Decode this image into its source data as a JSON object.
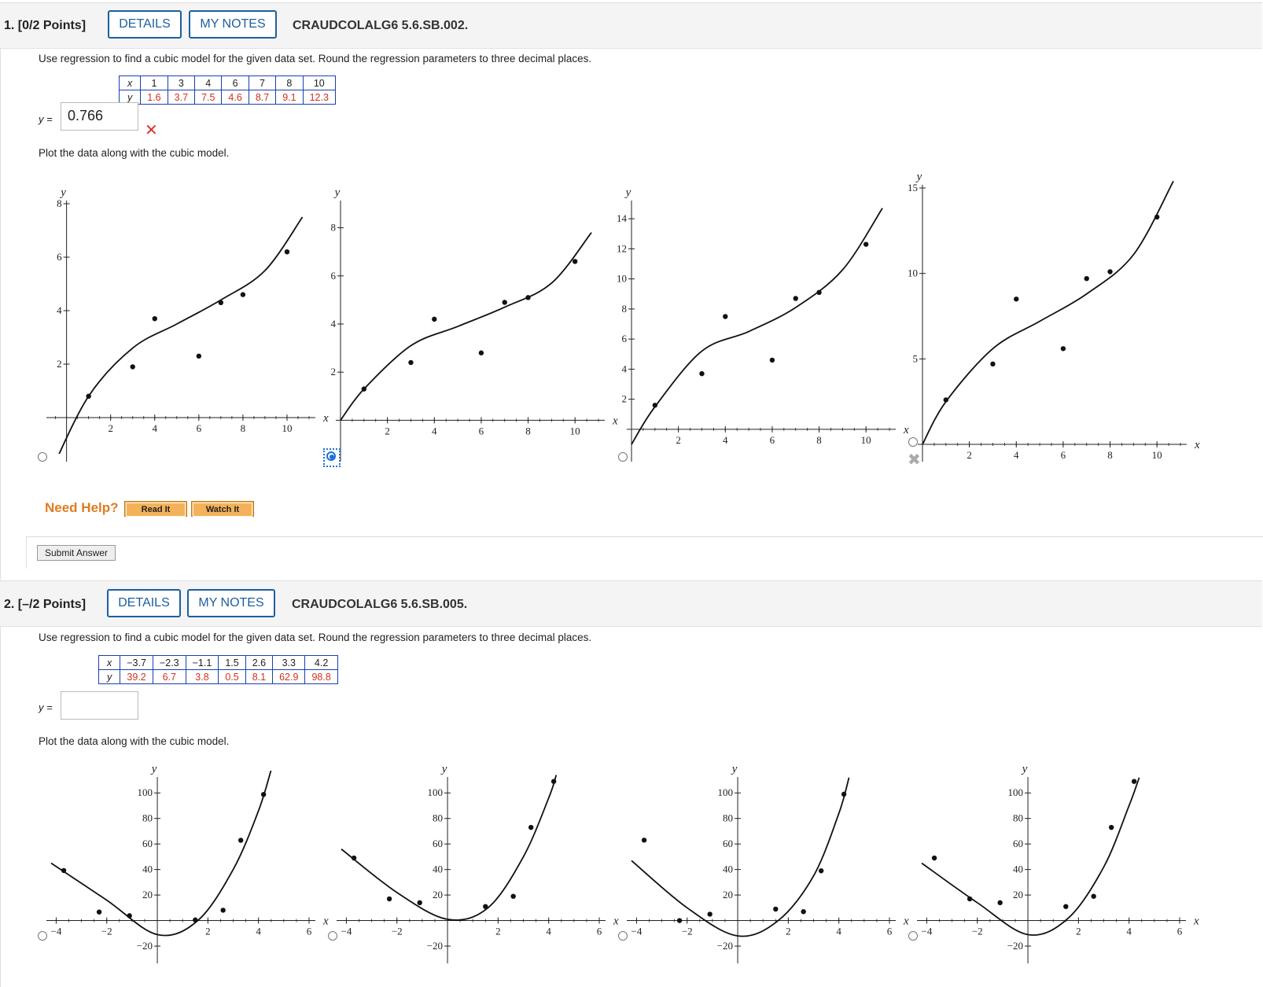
{
  "q1": {
    "number": "1.",
    "points": "[0/2 Points]",
    "details_label": "DETAILS",
    "notes_label": "MY NOTES",
    "code": "CRAUDCOLALG6 5.6.SB.002.",
    "prompt": "Use regression to find a cubic model for the given data set. Round the regression parameters to three decimal places.",
    "table": {
      "x_label": "x",
      "y_label": "y",
      "x": [
        "1",
        "3",
        "4",
        "6",
        "7",
        "8",
        "10"
      ],
      "y": [
        "1.6",
        "3.7",
        "7.5",
        "4.6",
        "8.7",
        "9.1",
        "12.3"
      ]
    },
    "answer_label": "y =",
    "answer_value": "0.766",
    "answer_status": "incorrect",
    "plot_prompt": "Plot the data along with the cubic model.",
    "selected_option": 2,
    "marked_wrong_option": 3,
    "help_label": "Need Help?",
    "read_it": "Read It",
    "watch_it": "Watch It",
    "submit_label": "Submit Answer"
  },
  "q2": {
    "number": "2.",
    "points": "[–/2 Points]",
    "details_label": "DETAILS",
    "notes_label": "MY NOTES",
    "code": "CRAUDCOLALG6 5.6.SB.005.",
    "prompt": "Use regression to find a cubic model for the given data set. Round the regression parameters to three decimal places.",
    "table": {
      "x_label": "x",
      "y_label": "y",
      "x": [
        "−3.7",
        "−2.3",
        "−1.1",
        "1.5",
        "2.6",
        "3.3",
        "4.2"
      ],
      "y": [
        "39.2",
        "6.7",
        "3.8",
        "0.5",
        "8.1",
        "62.9",
        "98.8"
      ]
    },
    "answer_label": "y =",
    "answer_value": "",
    "plot_prompt": "Plot the data along with the cubic model.",
    "selected_option": null
  },
  "chart_data": [
    {
      "type": "scatter",
      "xlabel": "x",
      "ylabel": "y",
      "xlim": [
        -0.7,
        11
      ],
      "ylim": [
        -1,
        8
      ],
      "xticks": [
        2,
        4,
        6,
        8,
        10
      ],
      "yticks": [
        2,
        4,
        6,
        8
      ],
      "points": [
        [
          1,
          0.8
        ],
        [
          3,
          1.9
        ],
        [
          4,
          3.7
        ],
        [
          6,
          2.3
        ],
        [
          7,
          4.3
        ],
        [
          8,
          4.6
        ],
        [
          10,
          6.2
        ]
      ],
      "curve": [
        [
          -0.7,
          -2
        ],
        [
          1,
          0.8
        ],
        [
          3,
          2.6
        ],
        [
          5,
          3.5
        ],
        [
          7,
          4.4
        ],
        [
          9,
          5.5
        ],
        [
          10.7,
          7.5
        ]
      ]
    },
    {
      "type": "scatter",
      "xlabel": "x",
      "ylabel": "y",
      "xlim": [
        0,
        11
      ],
      "ylim": [
        -1,
        9
      ],
      "xticks": [
        2,
        4,
        6,
        8,
        10
      ],
      "yticks": [
        2,
        4,
        6,
        8
      ],
      "points": [
        [
          1,
          1.3
        ],
        [
          3,
          2.4
        ],
        [
          4,
          4.2
        ],
        [
          6,
          2.8
        ],
        [
          7,
          4.9
        ],
        [
          8,
          5.1
        ],
        [
          10,
          6.6
        ]
      ],
      "curve": [
        [
          0,
          0
        ],
        [
          1,
          1.3
        ],
        [
          3,
          3.1
        ],
        [
          5,
          3.9
        ],
        [
          7,
          4.7
        ],
        [
          9,
          5.7
        ],
        [
          10.7,
          7.8
        ]
      ]
    },
    {
      "type": "scatter",
      "xlabel": "x",
      "ylabel": "y",
      "xlim": [
        0,
        11
      ],
      "ylim": [
        -1,
        15
      ],
      "xticks": [
        2,
        4,
        6,
        8,
        10
      ],
      "yticks": [
        2,
        4,
        6,
        8,
        10,
        12,
        14
      ],
      "points": [
        [
          1,
          1.6
        ],
        [
          3,
          3.7
        ],
        [
          4,
          7.5
        ],
        [
          6,
          4.6
        ],
        [
          7,
          8.7
        ],
        [
          8,
          9.1
        ],
        [
          10,
          12.3
        ]
      ],
      "curve": [
        [
          0,
          -1
        ],
        [
          1,
          1.5
        ],
        [
          3,
          5.2
        ],
        [
          5,
          6.5
        ],
        [
          7,
          8.1
        ],
        [
          9,
          10.6
        ],
        [
          10.7,
          14.7
        ]
      ]
    },
    {
      "type": "scatter",
      "xlabel": "x",
      "ylabel": "y",
      "xlim": [
        0,
        11
      ],
      "ylim": [
        0,
        15
      ],
      "xticks": [
        2,
        4,
        6,
        8,
        10
      ],
      "yticks": [
        5,
        10,
        15
      ],
      "points": [
        [
          1,
          2.6
        ],
        [
          3,
          4.7
        ],
        [
          4,
          8.5
        ],
        [
          6,
          5.6
        ],
        [
          7,
          9.7
        ],
        [
          8,
          10.1
        ],
        [
          10,
          13.3
        ]
      ],
      "curve": [
        [
          0,
          0
        ],
        [
          1,
          2.5
        ],
        [
          3,
          5.6
        ],
        [
          5,
          7.2
        ],
        [
          7,
          8.8
        ],
        [
          9,
          11.1
        ],
        [
          10.7,
          15.4
        ]
      ]
    },
    {
      "type": "scatter",
      "xlabel": "x",
      "ylabel": "y",
      "xlim": [
        -4.2,
        6
      ],
      "ylim": [
        -20,
        110
      ],
      "xticks": [
        -4,
        -2,
        2,
        4,
        6
      ],
      "yticks": [
        -20,
        20,
        40,
        60,
        80,
        100
      ],
      "points": [
        [
          -3.7,
          39.2
        ],
        [
          -2.3,
          6.7
        ],
        [
          -1.1,
          3.8
        ],
        [
          1.5,
          0.5
        ],
        [
          2.6,
          8.1
        ],
        [
          3.3,
          62.9
        ],
        [
          4.2,
          98.8
        ]
      ],
      "curve": [
        [
          -4.2,
          45
        ],
        [
          -2,
          16
        ],
        [
          0,
          -11
        ],
        [
          1.6,
          0
        ],
        [
          3,
          40
        ],
        [
          4,
          86
        ],
        [
          4.5,
          118
        ]
      ]
    },
    {
      "type": "scatter",
      "xlabel": "x",
      "ylabel": "y",
      "xlim": [
        -4.2,
        6
      ],
      "ylim": [
        -20,
        110
      ],
      "xticks": [
        -4,
        -2,
        2,
        4,
        6
      ],
      "yticks": [
        -20,
        20,
        40,
        60,
        80,
        100
      ],
      "points": [
        [
          -3.7,
          49
        ],
        [
          -2.3,
          17
        ],
        [
          -1.1,
          14
        ],
        [
          1.5,
          11
        ],
        [
          2.6,
          19
        ],
        [
          3.3,
          73
        ],
        [
          4.2,
          109
        ]
      ],
      "curve": [
        [
          -4.2,
          56
        ],
        [
          -2,
          22
        ],
        [
          0,
          1
        ],
        [
          1.6,
          10
        ],
        [
          3,
          50
        ],
        [
          4,
          96
        ],
        [
          4.3,
          114
        ]
      ]
    },
    {
      "type": "scatter",
      "xlabel": "x",
      "ylabel": "y",
      "xlim": [
        -4.2,
        6
      ],
      "ylim": [
        -20,
        110
      ],
      "xticks": [
        -4,
        -2,
        2,
        4,
        6
      ],
      "yticks": [
        -20,
        20,
        40,
        60,
        80,
        100
      ],
      "points": [
        [
          -3.7,
          63
        ],
        [
          -2.3,
          0
        ],
        [
          -1.1,
          5
        ],
        [
          1.5,
          9
        ],
        [
          2.6,
          7
        ],
        [
          3.3,
          39
        ],
        [
          4.2,
          99
        ]
      ],
      "curve": [
        [
          -4.2,
          47
        ],
        [
          -2,
          10
        ],
        [
          0,
          -12
        ],
        [
          1.6,
          0
        ],
        [
          3,
          35
        ],
        [
          4,
          84
        ],
        [
          4.4,
          112
        ]
      ]
    },
    {
      "type": "scatter",
      "xlabel": "x",
      "ylabel": "y",
      "xlim": [
        -4.2,
        6
      ],
      "ylim": [
        -20,
        110
      ],
      "xticks": [
        -4,
        -2,
        2,
        4,
        6
      ],
      "yticks": [
        -20,
        20,
        40,
        60,
        80,
        100
      ],
      "points": [
        [
          -3.7,
          49
        ],
        [
          -2.3,
          17
        ],
        [
          -1.1,
          14
        ],
        [
          1.5,
          11
        ],
        [
          2.6,
          19
        ],
        [
          3.3,
          73
        ],
        [
          4.2,
          109
        ]
      ],
      "curve": [
        [
          -4.2,
          45
        ],
        [
          -2,
          14
        ],
        [
          0,
          -11
        ],
        [
          1.6,
          2
        ],
        [
          3,
          42
        ],
        [
          4,
          90
        ],
        [
          4.4,
          112
        ]
      ]
    }
  ]
}
